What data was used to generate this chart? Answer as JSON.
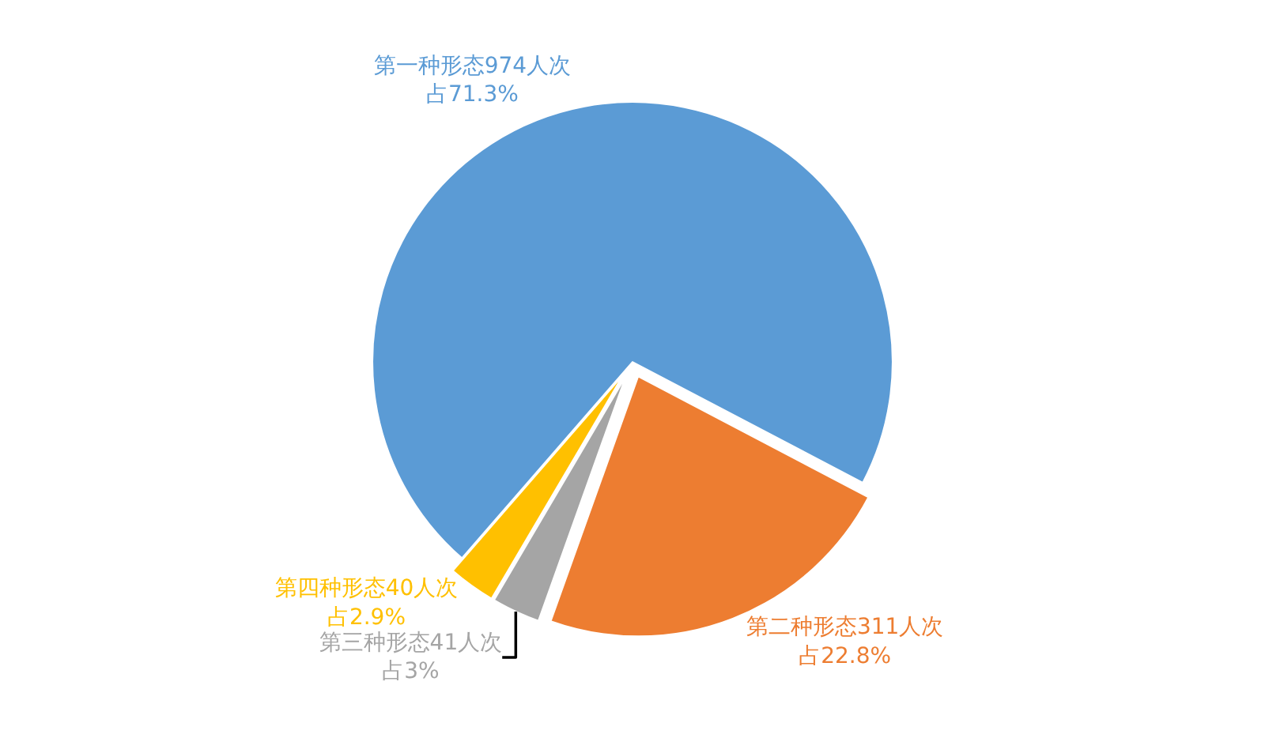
{
  "chart_data": {
    "type": "pie",
    "categories": [
      "第一种形态974人次",
      "第二种形态311人次",
      "第三种形态41人次",
      "第四种形态40人次"
    ],
    "values": [
      974,
      311,
      41,
      40
    ],
    "colors": [
      "#5b9bd5",
      "#ed7d31",
      "#a5a5a5",
      "#ffc000"
    ],
    "value_labels": [
      "占71.3%",
      "占22.8%",
      "占3%",
      "占2.9%"
    ],
    "legend": false
  }
}
